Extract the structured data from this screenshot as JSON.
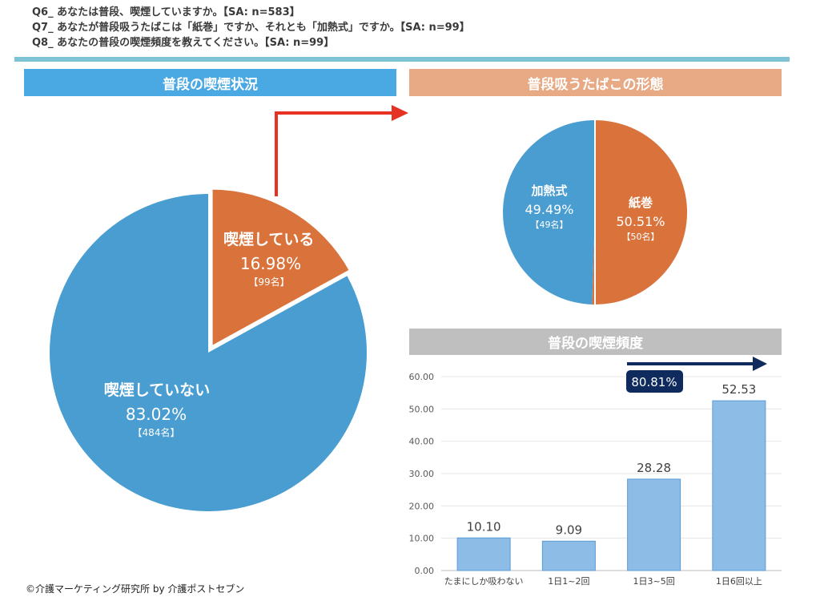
{
  "questions": [
    "Q6_ あなたは普段、喫煙していますか。【SA: n=583】",
    "Q7_ あなたが普段吸うたばこは「紙巻」ですか、それとも「加熱式」ですか。【SA: n=99】",
    "Q8_ あなたの普段の喫煙頻度を教えてください。【SA: n=99】"
  ],
  "colors": {
    "rule": "#7ec3d6",
    "blue": "#4a9dd1",
    "orange": "#d9733b",
    "status_banner": "#4aa8e3",
    "form_banner": "#e8aa85",
    "freq_banner": "#bfbfbf",
    "bar_fill": "#8dbde6",
    "bar_stroke": "#5b9bd5",
    "arrow_red": "#e53222",
    "arrow_navy": "#0f2a5c"
  },
  "chart_data": [
    {
      "type": "pie",
      "title": "普段の喫煙状況",
      "slices": [
        {
          "label": "喫煙している",
          "value": 16.98,
          "pct_label": "16.98%",
          "count_label": "【99名】"
        },
        {
          "label": "喫煙していない",
          "value": 83.02,
          "pct_label": "83.02%",
          "count_label": "【484名】"
        }
      ]
    },
    {
      "type": "pie",
      "title": "普段吸うたばこの形態",
      "slices": [
        {
          "label": "紙巻",
          "value": 50.51,
          "pct_label": "50.51%",
          "count_label": "【50名】"
        },
        {
          "label": "加熱式",
          "value": 49.49,
          "pct_label": "49.49%",
          "count_label": "【49名】"
        }
      ]
    },
    {
      "type": "bar",
      "title": "普段の喫煙頻度",
      "categories": [
        "たまにしか吸わない",
        "1日1~2回",
        "1日3~5回",
        "1日6回以上"
      ],
      "values": [
        10.1,
        9.09,
        28.28,
        52.53
      ],
      "value_labels": [
        "10.10",
        "9.09",
        "28.28",
        "52.53"
      ],
      "ylim": [
        0,
        60
      ],
      "yticks": [
        "0.00",
        "10.00",
        "20.00",
        "30.00",
        "40.00",
        "50.00",
        "60.00"
      ],
      "grid": true,
      "annotation": "80.81%"
    }
  ],
  "credit": "©介護マーケティング研究所 by 介護ポストセブン"
}
